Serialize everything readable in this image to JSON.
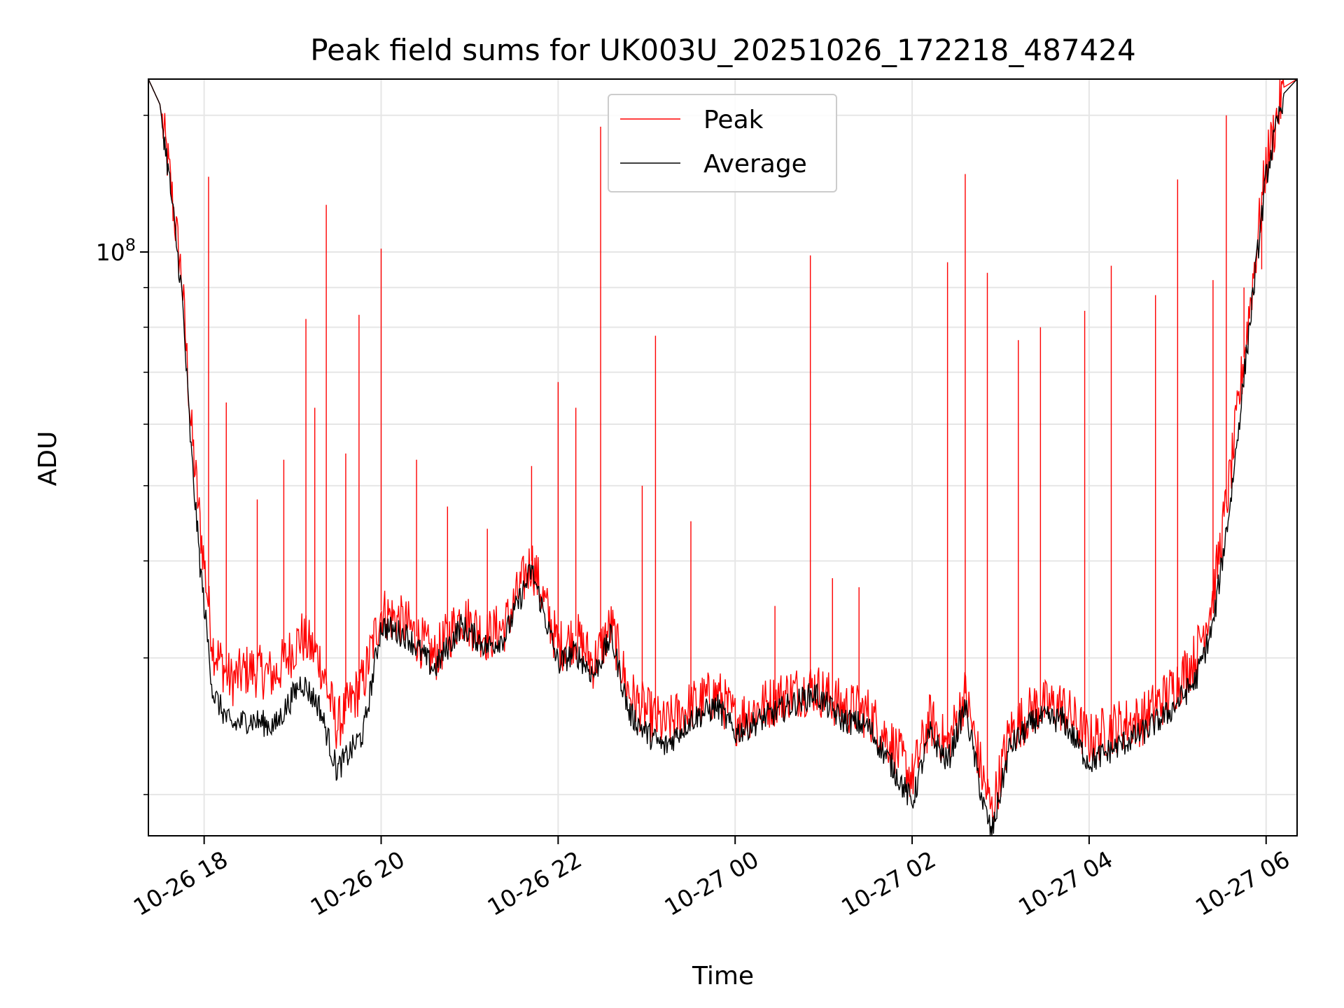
{
  "chart_data": {
    "type": "line",
    "title": "Peak field sums for UK003U_20251026_172218_487424",
    "xlabel": "Time",
    "ylabel": "ADU",
    "yscale": "log",
    "ylim": [
      17700000,
      167000000
    ],
    "xlim_hours": [
      17.37,
      6.35
    ],
    "x_ticks": [
      {
        "hour": 18,
        "label": "10-26 18"
      },
      {
        "hour": 20,
        "label": "10-26 20"
      },
      {
        "hour": 22,
        "label": "10-26 22"
      },
      {
        "hour": 24,
        "label": "10-27 00"
      },
      {
        "hour": 26,
        "label": "10-27 02"
      },
      {
        "hour": 28,
        "label": "10-27 04"
      },
      {
        "hour": 30,
        "label": "10-27 06"
      }
    ],
    "y_major_ticks": [
      {
        "value": 100000000,
        "base": "10",
        "exp": "8"
      }
    ],
    "y_minor_ticks": [
      20000000,
      30000000,
      40000000,
      50000000,
      60000000,
      70000000,
      80000000,
      90000000
    ],
    "grid": true,
    "legend_position": "top-center",
    "series": [
      {
        "name": "Peak",
        "color": "#ff0000",
        "x_hours": [
          17.37,
          17.5,
          17.6,
          17.75,
          17.85,
          17.95,
          18.1,
          18.3,
          18.5,
          18.8,
          19.1,
          19.3,
          19.5,
          19.8,
          20.0,
          20.3,
          20.6,
          20.9,
          21.2,
          21.4,
          21.7,
          22.0,
          22.2,
          22.4,
          22.6,
          22.8,
          23.0,
          23.2,
          23.5,
          23.8,
          24.0,
          24.3,
          24.6,
          24.9,
          25.2,
          25.5,
          25.8,
          26.0,
          26.2,
          26.4,
          26.6,
          26.8,
          26.9,
          27.1,
          27.4,
          27.7,
          28.0,
          28.3,
          28.6,
          28.9,
          29.2,
          29.4,
          29.6,
          29.8,
          30.0,
          30.2,
          30.35
        ],
        "y_values": [
          167000000,
          155000000,
          128000000,
          92000000,
          60000000,
          45000000,
          31000000,
          28000000,
          29000000,
          28500000,
          32000000,
          30000000,
          24500000,
          28000000,
          34500000,
          33000000,
          30000000,
          34000000,
          32000000,
          33000000,
          40000000,
          31000000,
          32000000,
          29500000,
          33000000,
          27000000,
          25500000,
          24500000,
          26000000,
          27000000,
          25000000,
          26000000,
          27000000,
          27500000,
          26000000,
          25500000,
          23000000,
          21000000,
          25000000,
          23000000,
          27000000,
          21000000,
          19000000,
          24000000,
          26000000,
          26000000,
          23500000,
          24500000,
          25000000,
          27000000,
          30000000,
          36000000,
          52000000,
          82000000,
          130000000,
          163000000,
          167000000
        ],
        "spikes": [
          {
            "hour": 18.05,
            "value": 125000000
          },
          {
            "hour": 18.25,
            "value": 64000000
          },
          {
            "hour": 18.6,
            "value": 48000000
          },
          {
            "hour": 18.9,
            "value": 54000000
          },
          {
            "hour": 19.15,
            "value": 82000000
          },
          {
            "hour": 19.25,
            "value": 63000000
          },
          {
            "hour": 19.38,
            "value": 115000000
          },
          {
            "hour": 19.6,
            "value": 55000000
          },
          {
            "hour": 19.75,
            "value": 83000000
          },
          {
            "hour": 20.0,
            "value": 101000000
          },
          {
            "hour": 20.4,
            "value": 54000000
          },
          {
            "hour": 20.75,
            "value": 47000000
          },
          {
            "hour": 21.2,
            "value": 44000000
          },
          {
            "hour": 21.7,
            "value": 53000000
          },
          {
            "hour": 22.0,
            "value": 68000000
          },
          {
            "hour": 22.2,
            "value": 63000000
          },
          {
            "hour": 22.48,
            "value": 145000000
          },
          {
            "hour": 22.95,
            "value": 50000000
          },
          {
            "hour": 23.1,
            "value": 78000000
          },
          {
            "hour": 23.5,
            "value": 45000000
          },
          {
            "hour": 24.45,
            "value": 35000000
          },
          {
            "hour": 24.85,
            "value": 99000000
          },
          {
            "hour": 25.1,
            "value": 38000000
          },
          {
            "hour": 25.4,
            "value": 37000000
          },
          {
            "hour": 26.4,
            "value": 97000000
          },
          {
            "hour": 26.6,
            "value": 126000000
          },
          {
            "hour": 26.85,
            "value": 94000000
          },
          {
            "hour": 27.2,
            "value": 77000000
          },
          {
            "hour": 27.45,
            "value": 80000000
          },
          {
            "hour": 27.95,
            "value": 84000000
          },
          {
            "hour": 28.25,
            "value": 96000000
          },
          {
            "hour": 28.75,
            "value": 88000000
          },
          {
            "hour": 29.0,
            "value": 124000000
          },
          {
            "hour": 29.4,
            "value": 92000000
          },
          {
            "hour": 29.55,
            "value": 150000000
          },
          {
            "hour": 29.75,
            "value": 90000000
          },
          {
            "hour": 29.95,
            "value": 95000000
          }
        ]
      },
      {
        "name": "Average",
        "color": "#000000",
        "x_hours": [
          17.37,
          17.5,
          17.6,
          17.75,
          17.85,
          17.95,
          18.1,
          18.3,
          18.5,
          18.8,
          19.1,
          19.3,
          19.5,
          19.8,
          20.0,
          20.3,
          20.6,
          20.9,
          21.2,
          21.4,
          21.7,
          22.0,
          22.2,
          22.4,
          22.6,
          22.8,
          23.0,
          23.2,
          23.5,
          23.8,
          24.0,
          24.3,
          24.6,
          24.9,
          25.2,
          25.5,
          25.8,
          26.0,
          26.2,
          26.4,
          26.6,
          26.8,
          26.9,
          27.1,
          27.4,
          27.7,
          28.0,
          28.3,
          28.6,
          28.9,
          29.2,
          29.4,
          29.6,
          29.8,
          30.0,
          30.2,
          30.35
        ],
        "y_values": [
          167000000,
          155000000,
          126000000,
          88000000,
          56000000,
          40000000,
          27000000,
          24500000,
          25000000,
          24500000,
          28000000,
          26000000,
          21500000,
          24000000,
          33000000,
          32000000,
          29000000,
          33000000,
          31000000,
          32000000,
          39000000,
          29500000,
          30500000,
          28500000,
          32000000,
          25500000,
          24000000,
          23000000,
          25000000,
          26000000,
          24000000,
          25000000,
          26000000,
          27000000,
          25000000,
          24500000,
          21500000,
          19500000,
          24000000,
          22000000,
          26000000,
          19500000,
          17800000,
          23000000,
          25000000,
          25000000,
          22000000,
          23000000,
          24000000,
          25500000,
          28000000,
          33000000,
          48000000,
          78000000,
          125000000,
          160000000,
          167000000
        ]
      }
    ]
  }
}
